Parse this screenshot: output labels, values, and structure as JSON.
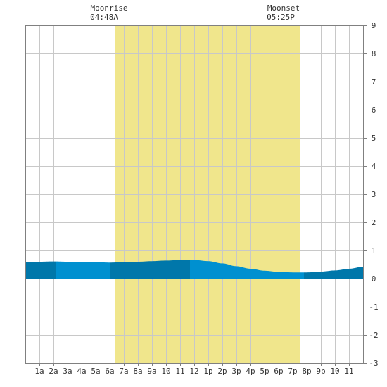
{
  "moon": {
    "rise_label": "Moonrise",
    "rise_time": "04:48A",
    "set_label": "Moonset",
    "set_time": "05:25P"
  },
  "colors": {
    "daylight": "#f0e68c",
    "tide_dark": "#0077aa",
    "tide_light": "#0090d0",
    "grid": "#c8c8c8",
    "border": "#808080"
  },
  "chart_data": {
    "type": "area",
    "title": "",
    "xlabel": "",
    "ylabel": "",
    "xlim": [
      0,
      24
    ],
    "ylim": [
      -3,
      9
    ],
    "grid": true,
    "x_tick_labels": [
      "1a",
      "2a",
      "3a",
      "4a",
      "5a",
      "6a",
      "7a",
      "8a",
      "9a",
      "10",
      "11",
      "12",
      "1p",
      "2p",
      "3p",
      "4p",
      "5p",
      "6p",
      "7p",
      "8p",
      "9p",
      "10",
      "11"
    ],
    "y_tick_labels": [
      "9",
      "8",
      "7",
      "6",
      "5",
      "4",
      "3",
      "2",
      "1",
      "0",
      "-1",
      "-2",
      "-3"
    ],
    "daylight_hours": [
      6.35,
      19.5
    ],
    "moonrise_hour": 4.8,
    "moonset_hour": 17.42,
    "tide": {
      "x": [
        0,
        1,
        2,
        3,
        4,
        5,
        6,
        7,
        8,
        9,
        10,
        11,
        12,
        13,
        14,
        15,
        16,
        17,
        18,
        19,
        20,
        21,
        22,
        23,
        24
      ],
      "y": [
        0.58,
        0.6,
        0.61,
        0.6,
        0.59,
        0.58,
        0.57,
        0.58,
        0.6,
        0.62,
        0.64,
        0.66,
        0.66,
        0.62,
        0.54,
        0.44,
        0.35,
        0.28,
        0.24,
        0.22,
        0.22,
        0.25,
        0.29,
        0.35,
        0.42
      ]
    },
    "tide_bands": [
      {
        "from": 0,
        "to": 2.2,
        "shade": "dark"
      },
      {
        "from": 2.2,
        "to": 6.0,
        "shade": "light"
      },
      {
        "from": 6.0,
        "to": 11.7,
        "shade": "dark"
      },
      {
        "from": 11.7,
        "to": 19.8,
        "shade": "light"
      },
      {
        "from": 19.8,
        "to": 24,
        "shade": "dark"
      }
    ]
  }
}
